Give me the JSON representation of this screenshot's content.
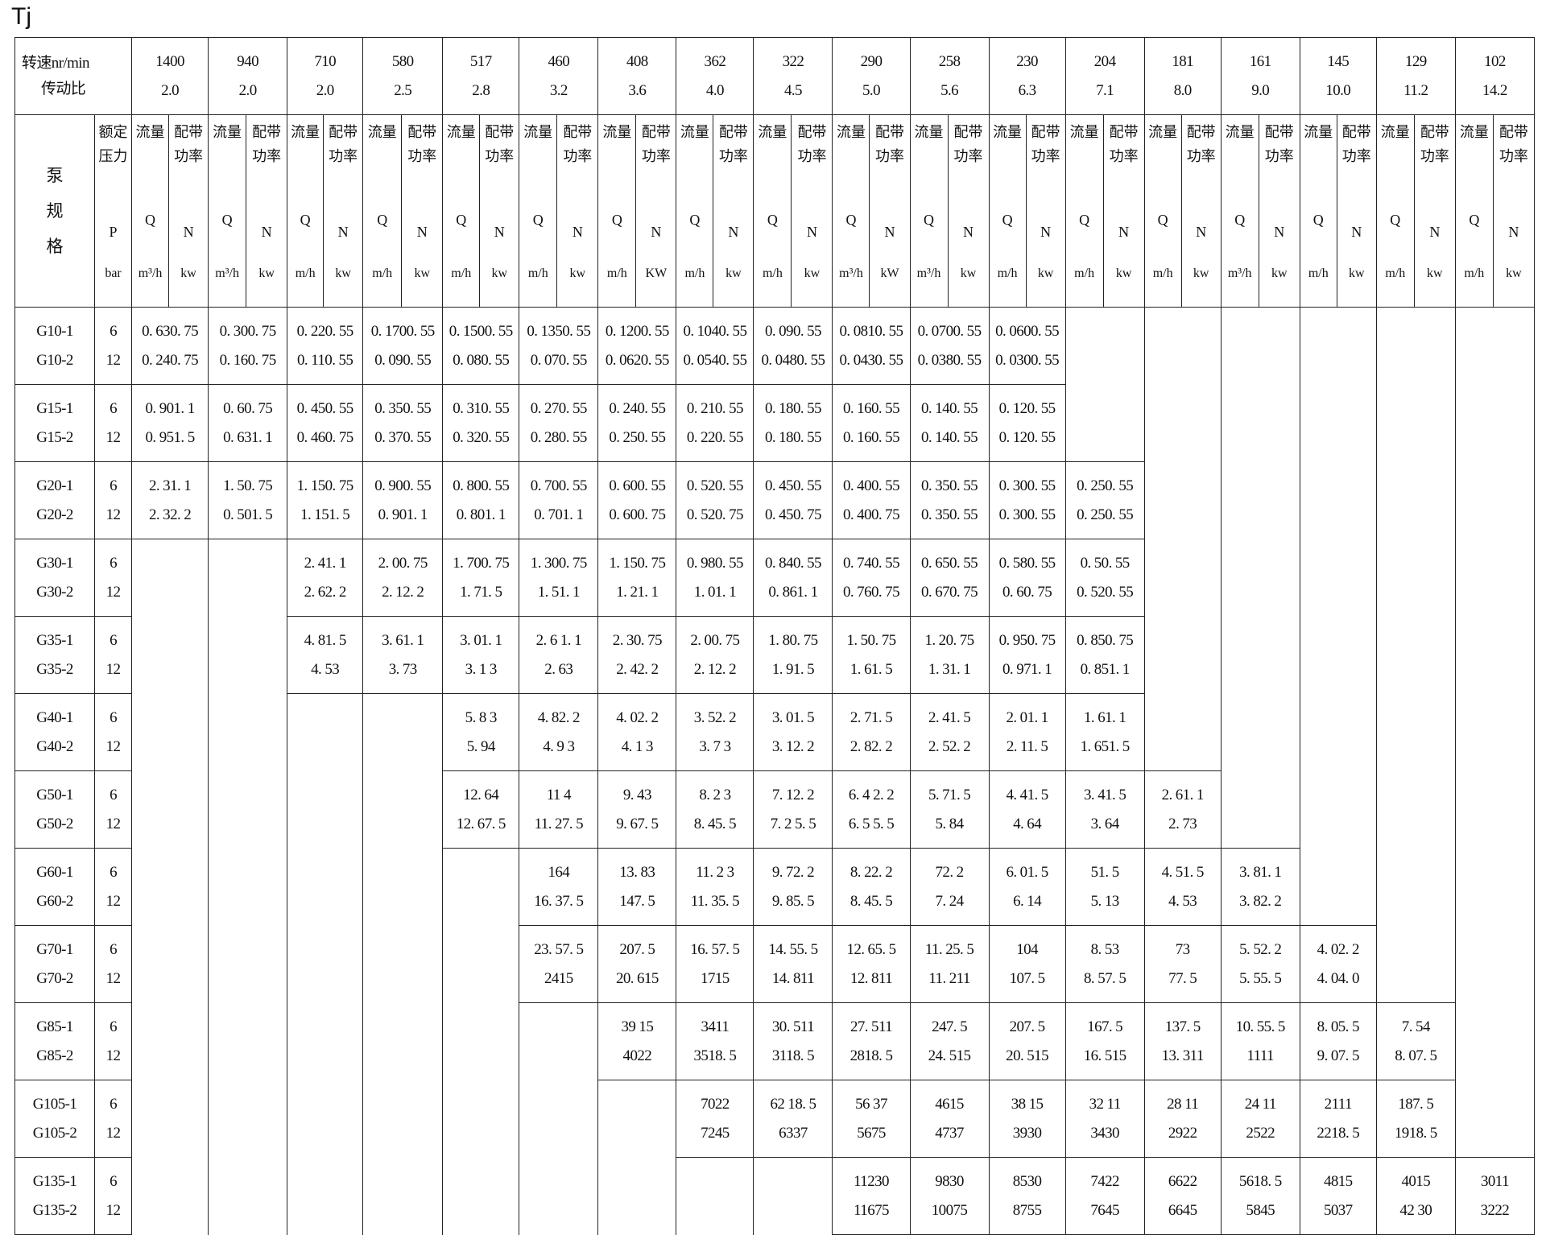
{
  "title": "Tj",
  "header": {
    "corner_line1": "转速nr/min",
    "corner_line2": "传动比",
    "spec_label": [
      "泵",
      "规",
      "格"
    ],
    "pressure_label": "额定压力",
    "pressure_symbol": "P",
    "pressure_unit": "bar",
    "flow_label": "流量",
    "power_label": "配带功率",
    "q_symbol": "Q",
    "n_symbol": "N",
    "speeds": [
      {
        "rpm": "1400",
        "ratio": "2.0",
        "q_unit": "m³/h",
        "n_unit": "kw"
      },
      {
        "rpm": "940",
        "ratio": "2.0",
        "q_unit": "m³/h",
        "n_unit": "kw"
      },
      {
        "rpm": "710",
        "ratio": "2.0",
        "q_unit": "m/h",
        "n_unit": "kw"
      },
      {
        "rpm": "580",
        "ratio": "2.5",
        "q_unit": "m/h",
        "n_unit": "kw"
      },
      {
        "rpm": "517",
        "ratio": "2.8",
        "q_unit": "m/h",
        "n_unit": "kw"
      },
      {
        "rpm": "460",
        "ratio": "3.2",
        "q_unit": "m/h",
        "n_unit": "kw"
      },
      {
        "rpm": "408",
        "ratio": "3.6",
        "q_unit": "m/h",
        "n_unit": "KW"
      },
      {
        "rpm": "362",
        "ratio": "4.0",
        "q_unit": "m/h",
        "n_unit": "kw"
      },
      {
        "rpm": "322",
        "ratio": "4.5",
        "q_unit": "m/h",
        "n_unit": "kw"
      },
      {
        "rpm": "290",
        "ratio": "5.0",
        "q_unit": "m³/h",
        "n_unit": "kW"
      },
      {
        "rpm": "258",
        "ratio": "5.6",
        "q_unit": "m³/h",
        "n_unit": "kw"
      },
      {
        "rpm": "230",
        "ratio": "6.3",
        "q_unit": "m/h",
        "n_unit": "kw"
      },
      {
        "rpm": "204",
        "ratio": "7.1",
        "q_unit": "m/h",
        "n_unit": "kw"
      },
      {
        "rpm": "181",
        "ratio": "8.0",
        "q_unit": "m/h",
        "n_unit": "kw"
      },
      {
        "rpm": "161",
        "ratio": "9.0",
        "q_unit": "m³/h",
        "n_unit": "kw"
      },
      {
        "rpm": "145",
        "ratio": "10.0",
        "q_unit": "m/h",
        "n_unit": "kw"
      },
      {
        "rpm": "129",
        "ratio": "11.2",
        "q_unit": "m/h",
        "n_unit": "kw"
      },
      {
        "rpm": "102",
        "ratio": "14.2",
        "q_unit": "m/h",
        "n_unit": "kw"
      }
    ]
  },
  "rows": [
    {
      "models": [
        "G10-1",
        "G10-2"
      ],
      "pressures": [
        "6",
        "12"
      ],
      "cells": [
        [
          "0. 630. 75",
          "0. 240. 75"
        ],
        [
          "0. 300. 75",
          "0. 160. 75"
        ],
        [
          "0. 220. 55",
          "0. 110. 55"
        ],
        [
          "0. 1700. 55",
          "0. 090. 55"
        ],
        [
          "0. 1500. 55",
          "0. 080. 55"
        ],
        [
          "0. 1350. 55",
          "0. 070. 55"
        ],
        [
          "0. 1200. 55",
          "0. 0620. 55"
        ],
        [
          "0. 1040. 55",
          "0. 0540. 55"
        ],
        [
          "0. 090. 55",
          "0. 0480. 55"
        ],
        [
          "0. 0810. 55",
          "0. 0430. 55"
        ],
        [
          "0. 0700. 55",
          "0. 0380. 55"
        ],
        [
          "0. 0600. 55",
          "0. 0300. 55"
        ],
        null,
        null,
        null,
        null,
        null,
        null
      ]
    },
    {
      "models": [
        "G15-1",
        "G15-2"
      ],
      "pressures": [
        "6",
        "12"
      ],
      "cells": [
        [
          "0. 901. 1",
          "0. 951. 5"
        ],
        [
          "0. 60. 75",
          "0. 631. 1"
        ],
        [
          "0. 450. 55",
          "0. 460. 75"
        ],
        [
          "0. 350. 55",
          "0. 370. 55"
        ],
        [
          "0. 310. 55",
          "0. 320. 55"
        ],
        [
          "0. 270. 55",
          "0. 280. 55"
        ],
        [
          "0. 240. 55",
          "0. 250. 55"
        ],
        [
          "0. 210. 55",
          "0. 220. 55"
        ],
        [
          "0. 180. 55",
          "0. 180. 55"
        ],
        [
          "0. 160. 55",
          "0. 160. 55"
        ],
        [
          "0. 140. 55",
          "0. 140. 55"
        ],
        [
          "0. 120. 55",
          "0. 120. 55"
        ],
        null,
        null,
        null,
        null,
        null,
        null
      ]
    },
    {
      "models": [
        "G20-1",
        "G20-2"
      ],
      "pressures": [
        "6",
        "12"
      ],
      "cells": [
        [
          "2. 31. 1",
          "2. 32. 2"
        ],
        [
          "1. 50. 75",
          "0. 501. 5"
        ],
        [
          "1. 150. 75",
          "1. 151. 5"
        ],
        [
          "0. 900. 55",
          "0. 901. 1"
        ],
        [
          "0. 800. 55",
          "0. 801. 1"
        ],
        [
          "0. 700. 55",
          "0. 701. 1"
        ],
        [
          "0. 600. 55",
          "0. 600. 75"
        ],
        [
          "0. 520. 55",
          "0. 520. 75"
        ],
        [
          "0. 450. 55",
          "0. 450. 75"
        ],
        [
          "0. 400. 55",
          "0. 400. 75"
        ],
        [
          "0. 350. 55",
          "0. 350. 55"
        ],
        [
          "0. 300. 55",
          "0. 300. 55"
        ],
        [
          "0. 250. 55",
          "0. 250. 55"
        ],
        null,
        null,
        null,
        null,
        null
      ]
    },
    {
      "models": [
        "G30-1",
        "G30-2"
      ],
      "pressures": [
        "6",
        "12"
      ],
      "cells": [
        null,
        null,
        [
          "2. 41. 1",
          "2. 62. 2"
        ],
        [
          "2. 00. 75",
          "2. 12. 2"
        ],
        [
          "1. 700. 75",
          "1. 71. 5"
        ],
        [
          "1. 300. 75",
          "1. 51. 1"
        ],
        [
          "1. 150. 75",
          "1. 21. 1"
        ],
        [
          "0. 980. 55",
          "1. 01. 1"
        ],
        [
          "0. 840. 55",
          "0. 861. 1"
        ],
        [
          "0. 740. 55",
          "0. 760. 75"
        ],
        [
          "0. 650. 55",
          "0. 670. 75"
        ],
        [
          "0. 580. 55",
          "0. 60. 75"
        ],
        [
          "0. 50. 55",
          "0. 520. 55"
        ],
        null,
        null,
        null,
        null,
        null
      ]
    },
    {
      "models": [
        "G35-1",
        "G35-2"
      ],
      "pressures": [
        "6",
        "12"
      ],
      "cells": [
        null,
        null,
        [
          "4. 81. 5",
          "4. 53"
        ],
        [
          "3. 61. 1",
          "3. 73"
        ],
        [
          "3. 01. 1",
          "3. 1   3"
        ],
        [
          "2. 6  1. 1",
          "2. 63"
        ],
        [
          "2. 30. 75",
          "2. 42. 2"
        ],
        [
          "2. 00. 75",
          "2. 12. 2"
        ],
        [
          "1. 80. 75",
          "1. 91. 5"
        ],
        [
          "1. 50. 75",
          "1. 61. 5"
        ],
        [
          "1. 20. 75",
          "1. 31. 1"
        ],
        [
          "0. 950. 75",
          "0. 971. 1"
        ],
        [
          "0. 850. 75",
          "0. 851. 1"
        ],
        null,
        null,
        null,
        null,
        null
      ]
    },
    {
      "models": [
        "G40-1",
        "G40-2"
      ],
      "pressures": [
        "6",
        "12"
      ],
      "cells": [
        null,
        null,
        null,
        null,
        [
          "5. 8   3",
          "5. 94"
        ],
        [
          "4. 82. 2",
          "4. 9 3"
        ],
        [
          "4. 02. 2",
          "4. 1 3"
        ],
        [
          "3. 52. 2",
          "3. 7  3"
        ],
        [
          "3. 01. 5",
          "3. 12. 2"
        ],
        [
          "2. 71. 5",
          "2. 82. 2"
        ],
        [
          "2. 41. 5",
          "2. 52. 2"
        ],
        [
          "2. 01. 1",
          "2. 11. 5"
        ],
        [
          "1. 61. 1",
          "1. 651. 5"
        ],
        null,
        null,
        null,
        null,
        null
      ]
    },
    {
      "models": [
        "G50-1",
        "G50-2"
      ],
      "pressures": [
        "6",
        "12"
      ],
      "cells": [
        null,
        null,
        null,
        null,
        [
          "12. 64",
          "12. 67. 5"
        ],
        [
          "11 4",
          "11. 27. 5"
        ],
        [
          "9. 43",
          "9. 67. 5"
        ],
        [
          "8. 2  3",
          "8. 45. 5"
        ],
        [
          "7. 12. 2",
          "7. 2 5. 5"
        ],
        [
          "6. 4 2. 2",
          "6. 5 5. 5"
        ],
        [
          "5. 71. 5",
          "5. 84"
        ],
        [
          "4. 41. 5",
          "4. 64"
        ],
        [
          "3. 41. 5",
          "3. 64"
        ],
        [
          "2. 61. 1",
          "2. 73"
        ],
        null,
        null,
        null,
        null
      ]
    },
    {
      "models": [
        "G60-1",
        "G60-2"
      ],
      "pressures": [
        "6",
        "12"
      ],
      "cells": [
        null,
        null,
        null,
        null,
        null,
        [
          "164",
          "16. 37. 5"
        ],
        [
          "13. 83",
          "147. 5"
        ],
        [
          "11. 2  3",
          "11. 35. 5"
        ],
        [
          "9. 72. 2",
          "9. 85. 5"
        ],
        [
          "8. 22. 2",
          "8. 45. 5"
        ],
        [
          "72. 2",
          "7. 24"
        ],
        [
          "6. 01. 5",
          "6. 14"
        ],
        [
          "51. 5",
          "5. 13"
        ],
        [
          "4. 51. 5",
          "4. 53"
        ],
        [
          "3. 81. 1",
          "3. 82. 2"
        ],
        null,
        null,
        null
      ]
    },
    {
      "models": [
        "G70-1",
        "G70-2"
      ],
      "pressures": [
        "6",
        "12"
      ],
      "cells": [
        null,
        null,
        null,
        null,
        null,
        [
          "23. 57. 5",
          "2415"
        ],
        [
          "207. 5",
          "20. 615"
        ],
        [
          "16. 57. 5",
          "1715"
        ],
        [
          "14. 55. 5",
          "14. 811"
        ],
        [
          "12. 65. 5",
          "12. 811"
        ],
        [
          "11. 25. 5",
          "11. 211"
        ],
        [
          "104",
          "107. 5"
        ],
        [
          "8. 53",
          "8. 57. 5"
        ],
        [
          "73",
          "77. 5"
        ],
        [
          "5. 52. 2",
          "5. 55. 5"
        ],
        [
          "4. 02. 2",
          "4. 04. 0"
        ],
        null,
        null
      ]
    },
    {
      "models": [
        "G85-1",
        "G85-2"
      ],
      "pressures": [
        "6",
        "12"
      ],
      "cells": [
        null,
        null,
        null,
        null,
        null,
        null,
        [
          "39  15",
          "4022"
        ],
        [
          "3411",
          "3518. 5"
        ],
        [
          "30. 511",
          "3118. 5"
        ],
        [
          "27. 511",
          "2818. 5"
        ],
        [
          "247. 5",
          "24. 515"
        ],
        [
          "207. 5",
          "20. 515"
        ],
        [
          "167. 5",
          "16. 515"
        ],
        [
          "137. 5",
          "13. 311"
        ],
        [
          "10. 55. 5",
          "1111"
        ],
        [
          "8. 05. 5",
          "9. 07. 5"
        ],
        [
          "7. 54",
          "8. 07. 5"
        ],
        null
      ]
    },
    {
      "models": [
        "G105-1",
        "G105-2"
      ],
      "pressures": [
        "6",
        "12"
      ],
      "cells": [
        null,
        null,
        null,
        null,
        null,
        null,
        null,
        [
          "7022",
          "7245"
        ],
        [
          "62 18. 5",
          "6337"
        ],
        [
          "56  37",
          "5675"
        ],
        [
          "4615",
          "4737"
        ],
        [
          "38   15",
          "3930"
        ],
        [
          "32  11",
          "3430"
        ],
        [
          "28 11",
          "2922"
        ],
        [
          "24  11",
          "2522"
        ],
        [
          "2111",
          "2218. 5"
        ],
        [
          "187. 5",
          "1918. 5"
        ],
        null
      ]
    },
    {
      "models": [
        "G135-1",
        "G135-2"
      ],
      "pressures": [
        "6",
        "12"
      ],
      "cells": [
        null,
        null,
        null,
        null,
        null,
        null,
        null,
        null,
        null,
        [
          "11230",
          "11675"
        ],
        [
          "9830",
          "10075"
        ],
        [
          "8530",
          "8755"
        ],
        [
          "7422",
          "7645"
        ],
        [
          "6622",
          "6645"
        ],
        [
          "5618. 5",
          "5845"
        ],
        [
          "4815",
          "5037"
        ],
        [
          "4015",
          "42  30"
        ],
        [
          "3011",
          "3222"
        ]
      ]
    }
  ]
}
